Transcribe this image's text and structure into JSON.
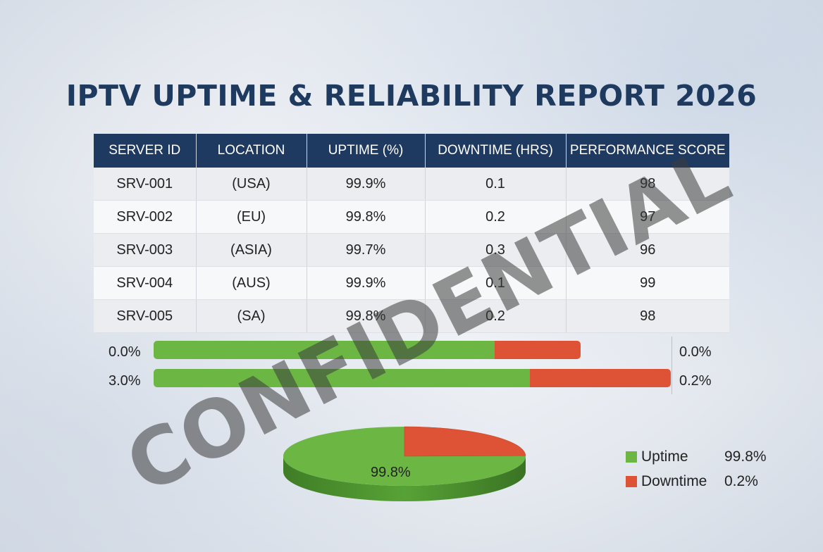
{
  "title": "IPTV UPTIME & RELIABILITY REPORT 2026",
  "table": {
    "headers": [
      "SERVER ID",
      "LOCATION",
      "UPTIME (%)",
      "DOWNTIME (HRS)",
      "PERFORMANCE SCORE"
    ],
    "rows": [
      [
        "SRV-001",
        "(USA)",
        "99.9%",
        "0.1",
        "98"
      ],
      [
        "SRV-002",
        "(EU)",
        "99.8%",
        "0.2",
        "97"
      ],
      [
        "SRV-003",
        "(ASIA)",
        "99.7%",
        "0.3",
        "96"
      ],
      [
        "SRV-004",
        "(AUS)",
        "99.9%",
        "0.1",
        "99"
      ],
      [
        "SRV-005",
        "(SA)",
        "99.8%",
        "0.2",
        "98"
      ]
    ]
  },
  "bars": [
    {
      "left_label": "0.0%",
      "right_label": "0.0%",
      "uptime_fraction": 0.79,
      "downtime_fraction": 0.2,
      "total_fraction": 0.826
    },
    {
      "left_label": "3.0%",
      "right_label": "0.2%",
      "uptime_fraction": 0.728,
      "downtime_fraction": 0.272,
      "total_fraction": 1.0
    }
  ],
  "colors": {
    "uptime": "#6cb744",
    "downtime": "#de5335",
    "header": "#1f3a60",
    "title": "#1f3a5f"
  },
  "chart_data": {
    "type": "pie",
    "slices": [
      {
        "name": "Uptime",
        "value": 99.8,
        "color": "#6cb744"
      },
      {
        "name": "Downtime",
        "value": 0.2,
        "color": "#de5335"
      }
    ],
    "center_label": "99.8%"
  },
  "legend": [
    {
      "name": "Uptime",
      "value": "99.8%",
      "color": "#6cb744"
    },
    {
      "name": "Downtime",
      "value": "0.2%",
      "color": "#de5335"
    }
  ],
  "watermark": "CONFIDENTIAL"
}
